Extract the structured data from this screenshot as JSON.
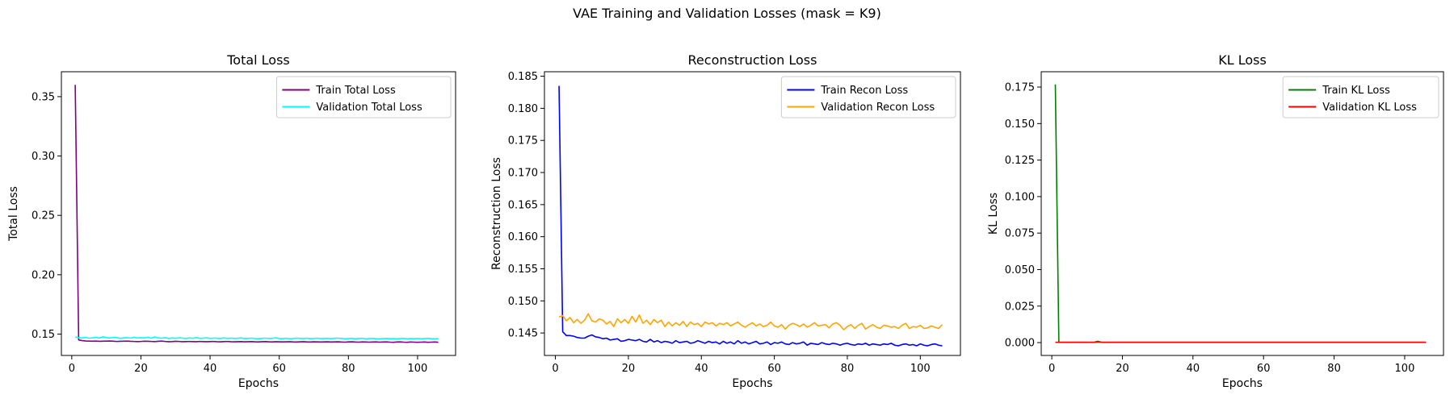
{
  "suptitle": "VAE Training and Validation Losses (mask = K9)",
  "chart_data": [
    {
      "type": "line",
      "title": "Total Loss",
      "xlabel": "Epochs",
      "ylabel": "Total Loss",
      "xlim": [
        -3,
        111
      ],
      "ylim": [
        0.132,
        0.371
      ],
      "xticks": [
        0,
        20,
        40,
        60,
        80,
        100
      ],
      "yticks": [
        0.15,
        0.2,
        0.25,
        0.3,
        0.35
      ],
      "ytick_decimals": 2,
      "legend_position": "top-right",
      "series": [
        {
          "name": "Train Total Loss",
          "color": "#800080",
          "x_start": 1,
          "values": [
            0.36,
            0.145,
            0.1445,
            0.1442,
            0.1441,
            0.144,
            0.1441,
            0.1439,
            0.144,
            0.1441,
            0.1442,
            0.144,
            0.1438,
            0.1439,
            0.144,
            0.1441,
            0.1439,
            0.1438,
            0.1437,
            0.1438,
            0.144,
            0.1439,
            0.1438,
            0.1437,
            0.1439,
            0.1441,
            0.1438,
            0.1436,
            0.1437,
            0.1439,
            0.1438,
            0.1436,
            0.1437,
            0.1438,
            0.1437,
            0.1436,
            0.1438,
            0.1437,
            0.1436,
            0.1437,
            0.1438,
            0.1436,
            0.1435,
            0.1437,
            0.1438,
            0.1436,
            0.1435,
            0.1436,
            0.1437,
            0.1435,
            0.1436,
            0.1437,
            0.1435,
            0.1434,
            0.1436,
            0.1437,
            0.1435,
            0.1434,
            0.1436,
            0.1435,
            0.1434,
            0.1435,
            0.1436,
            0.1434,
            0.1433,
            0.1435,
            0.1436,
            0.1434,
            0.1433,
            0.1435,
            0.1434,
            0.1433,
            0.1434,
            0.1435,
            0.1433,
            0.1434,
            0.1435,
            0.1433,
            0.1432,
            0.1434,
            0.1435,
            0.1433,
            0.1432,
            0.1434,
            0.1433,
            0.1432,
            0.1433,
            0.1434,
            0.1432,
            0.1433,
            0.1434,
            0.1432,
            0.1431,
            0.1433,
            0.1434,
            0.1432,
            0.1431,
            0.1433,
            0.1432,
            0.1431,
            0.1432,
            0.1433,
            0.1431,
            0.1432,
            0.1433,
            0.1431
          ]
        },
        {
          "name": "Validation Total Loss",
          "color": "#00ffff",
          "x_start": 1,
          "values": [
            0.1475,
            0.147,
            0.1468,
            0.1472,
            0.1465,
            0.1468,
            0.1473,
            0.1466,
            0.1478,
            0.147,
            0.1467,
            0.1472,
            0.147,
            0.1464,
            0.1468,
            0.147,
            0.1466,
            0.1473,
            0.1467,
            0.147,
            0.1468,
            0.1473,
            0.1465,
            0.1476,
            0.1467,
            0.1466,
            0.147,
            0.1463,
            0.1467,
            0.1465,
            0.1468,
            0.1466,
            0.1463,
            0.1467,
            0.1465,
            0.147,
            0.1464,
            0.1466,
            0.1468,
            0.1464,
            0.1466,
            0.1465,
            0.1463,
            0.1467,
            0.1464,
            0.1466,
            0.1463,
            0.1465,
            0.1467,
            0.1462,
            0.1464,
            0.1466,
            0.1462,
            0.1461,
            0.1464,
            0.1466,
            0.1463,
            0.1465,
            0.1468,
            0.1462,
            0.1461,
            0.1465,
            0.146,
            0.1463,
            0.1466,
            0.1464,
            0.1462,
            0.1465,
            0.1461,
            0.1463,
            0.1466,
            0.1462,
            0.1463,
            0.1464,
            0.1461,
            0.1465,
            0.1466,
            0.1463,
            0.146,
            0.1462,
            0.1464,
            0.146,
            0.1463,
            0.1465,
            0.146,
            0.1462,
            0.1464,
            0.1461,
            0.146,
            0.1462,
            0.1463,
            0.1461,
            0.1462,
            0.146,
            0.1462,
            0.1464,
            0.146,
            0.1462,
            0.1461,
            0.1463,
            0.146,
            0.1462,
            0.1464,
            0.1461,
            0.146,
            0.1463
          ]
        }
      ]
    },
    {
      "type": "line",
      "title": "Reconstruction Loss",
      "xlabel": "Epochs",
      "ylabel": "Reconstruction Loss",
      "xlim": [
        -3,
        111
      ],
      "ylim": [
        0.1415,
        0.1857
      ],
      "xticks": [
        0,
        20,
        40,
        60,
        80,
        100
      ],
      "yticks": [
        0.145,
        0.15,
        0.155,
        0.16,
        0.165,
        0.17,
        0.175,
        0.18,
        0.185
      ],
      "ytick_decimals": 3,
      "legend_position": "top-right",
      "series": [
        {
          "name": "Train Recon Loss",
          "color": "#0000ff",
          "x_start": 1,
          "values": [
            0.1835,
            0.1452,
            0.1446,
            0.1446,
            0.1445,
            0.1443,
            0.1442,
            0.1442,
            0.1445,
            0.1447,
            0.1444,
            0.1443,
            0.1441,
            0.1442,
            0.1439,
            0.144,
            0.1441,
            0.1437,
            0.1438,
            0.144,
            0.1439,
            0.1438,
            0.144,
            0.1437,
            0.1436,
            0.144,
            0.1436,
            0.1438,
            0.1435,
            0.1437,
            0.1436,
            0.1434,
            0.1438,
            0.1435,
            0.1436,
            0.1437,
            0.1434,
            0.1435,
            0.1438,
            0.1436,
            0.1434,
            0.1437,
            0.1435,
            0.1436,
            0.1433,
            0.1437,
            0.1434,
            0.1436,
            0.1433,
            0.1438,
            0.1434,
            0.1436,
            0.1433,
            0.1435,
            0.1437,
            0.1433,
            0.1434,
            0.1436,
            0.1432,
            0.1435,
            0.1434,
            0.1436,
            0.1433,
            0.1432,
            0.1435,
            0.1433,
            0.1434,
            0.1436,
            0.1431,
            0.1434,
            0.1433,
            0.1432,
            0.1435,
            0.1433,
            0.1432,
            0.1434,
            0.1433,
            0.1431,
            0.1433,
            0.1434,
            0.1432,
            0.1431,
            0.1433,
            0.1432,
            0.1434,
            0.1431,
            0.1433,
            0.1432,
            0.1431,
            0.1433,
            0.1432,
            0.1434,
            0.1431,
            0.143,
            0.1432,
            0.1433,
            0.1431,
            0.1432,
            0.143,
            0.1433,
            0.1431,
            0.143,
            0.1432,
            0.1433,
            0.1431,
            0.143
          ]
        },
        {
          "name": "Validation Recon Loss",
          "color": "#ffa500",
          "x_start": 1,
          "values": [
            0.1475,
            0.1477,
            0.1469,
            0.1474,
            0.1466,
            0.1471,
            0.1465,
            0.147,
            0.148,
            0.1469,
            0.1467,
            0.1472,
            0.147,
            0.1464,
            0.1468,
            0.146,
            0.1472,
            0.1466,
            0.1471,
            0.1465,
            0.1476,
            0.1467,
            0.1478,
            0.1465,
            0.147,
            0.1463,
            0.1471,
            0.1466,
            0.147,
            0.146,
            0.1467,
            0.1461,
            0.1466,
            0.1462,
            0.1468,
            0.146,
            0.1467,
            0.1463,
            0.1465,
            0.146,
            0.1467,
            0.1464,
            0.1466,
            0.1461,
            0.1465,
            0.1463,
            0.1466,
            0.1461,
            0.1464,
            0.1467,
            0.1462,
            0.1459,
            0.1463,
            0.1466,
            0.1461,
            0.1464,
            0.146,
            0.1462,
            0.1467,
            0.1461,
            0.1459,
            0.1463,
            0.1456,
            0.1462,
            0.1465,
            0.1463,
            0.146,
            0.1464,
            0.1459,
            0.1462,
            0.1466,
            0.1461,
            0.1462,
            0.1463,
            0.1458,
            0.1464,
            0.1466,
            0.1462,
            0.1455,
            0.146,
            0.1463,
            0.1457,
            0.1462,
            0.1465,
            0.1456,
            0.146,
            0.1463,
            0.1459,
            0.1457,
            0.1462,
            0.1461,
            0.1459,
            0.146,
            0.1457,
            0.1462,
            0.1465,
            0.1457,
            0.146,
            0.1459,
            0.1462,
            0.1457,
            0.1458,
            0.1461,
            0.1459,
            0.1457,
            0.1463
          ]
        }
      ]
    },
    {
      "type": "line",
      "title": "KL Loss",
      "xlabel": "Epochs",
      "ylabel": "KL Loss",
      "xlim": [
        -3,
        111
      ],
      "ylim": [
        -0.0088,
        0.1855
      ],
      "xticks": [
        0,
        20,
        40,
        60,
        80,
        100
      ],
      "yticks": [
        0.0,
        0.025,
        0.05,
        0.075,
        0.1,
        0.125,
        0.15,
        0.175
      ],
      "ytick_decimals": 3,
      "legend_position": "top-right",
      "series": [
        {
          "name": "Train KL Loss",
          "color": "#008000",
          "x_start": 1,
          "values": [
            0.1768,
            0.0003,
            0.0002,
            0.0002,
            0.0002,
            0.0002,
            0.0002,
            0.0002,
            0.0002,
            0.0002,
            0.0002,
            0.0002,
            0.0003,
            0.0002,
            0.0002,
            0.0002,
            0.0002,
            0.0002,
            0.0002,
            0.0002,
            0.0002,
            0.0002,
            0.0002,
            0.0002,
            0.0002,
            0.0002,
            0.0002,
            0.0002,
            0.0002,
            0.0002,
            0.0002,
            0.0002,
            0.0002,
            0.0002,
            0.0002,
            0.0002,
            0.0002,
            0.0002,
            0.0002,
            0.0002,
            0.0002,
            0.0002,
            0.0002,
            0.0002,
            0.0002,
            0.0002,
            0.0002,
            0.0002,
            0.0002,
            0.0002,
            0.0002,
            0.0002,
            0.0002,
            0.0002,
            0.0002,
            0.0002,
            0.0002,
            0.0002,
            0.0002,
            0.0002,
            0.0002,
            0.0002,
            0.0002,
            0.0002,
            0.0002,
            0.0002,
            0.0002,
            0.0002,
            0.0002,
            0.0002,
            0.0002,
            0.0002,
            0.0002,
            0.0002,
            0.0002,
            0.0002,
            0.0002,
            0.0002,
            0.0002,
            0.0002,
            0.0002,
            0.0002,
            0.0002,
            0.0002,
            0.0002,
            0.0002,
            0.0002,
            0.0002,
            0.0002,
            0.0002,
            0.0002,
            0.0002,
            0.0002,
            0.0002,
            0.0002,
            0.0002,
            0.0002,
            0.0002,
            0.0002,
            0.0002,
            0.0002,
            0.0002,
            0.0002,
            0.0002,
            0.0002,
            0.0002
          ]
        },
        {
          "name": "Validation KL Loss",
          "color": "#ff0000",
          "x_start": 1,
          "values": [
            0.0002,
            0.0002,
            0.0002,
            0.0002,
            0.0002,
            0.0002,
            0.0002,
            0.0002,
            0.0002,
            0.0002,
            0.0002,
            0.0002,
            0.0009,
            0.0003,
            0.0002,
            0.0002,
            0.0002,
            0.0002,
            0.0002,
            0.0002,
            0.0002,
            0.0002,
            0.0002,
            0.0002,
            0.0002,
            0.0002,
            0.0002,
            0.0002,
            0.0002,
            0.0002,
            0.0002,
            0.0002,
            0.0002,
            0.0002,
            0.0002,
            0.0002,
            0.0002,
            0.0002,
            0.0002,
            0.0002,
            0.0002,
            0.0002,
            0.0002,
            0.0002,
            0.0002,
            0.0002,
            0.0002,
            0.0002,
            0.0002,
            0.0002,
            0.0002,
            0.0002,
            0.0002,
            0.0002,
            0.0002,
            0.0002,
            0.0002,
            0.0002,
            0.0002,
            0.0002,
            0.0002,
            0.0002,
            0.0002,
            0.0002,
            0.0002,
            0.0002,
            0.0002,
            0.0002,
            0.0002,
            0.0002,
            0.0002,
            0.0002,
            0.0002,
            0.0002,
            0.0002,
            0.0002,
            0.0002,
            0.0002,
            0.0002,
            0.0002,
            0.0002,
            0.0002,
            0.0002,
            0.0002,
            0.0002,
            0.0002,
            0.0002,
            0.0002,
            0.0002,
            0.0002,
            0.0002,
            0.0002,
            0.0002,
            0.0002,
            0.0002,
            0.0002,
            0.0002,
            0.0002,
            0.0002,
            0.0002,
            0.0002,
            0.0002,
            0.0002,
            0.0002,
            0.0002,
            0.0002
          ]
        }
      ]
    }
  ]
}
